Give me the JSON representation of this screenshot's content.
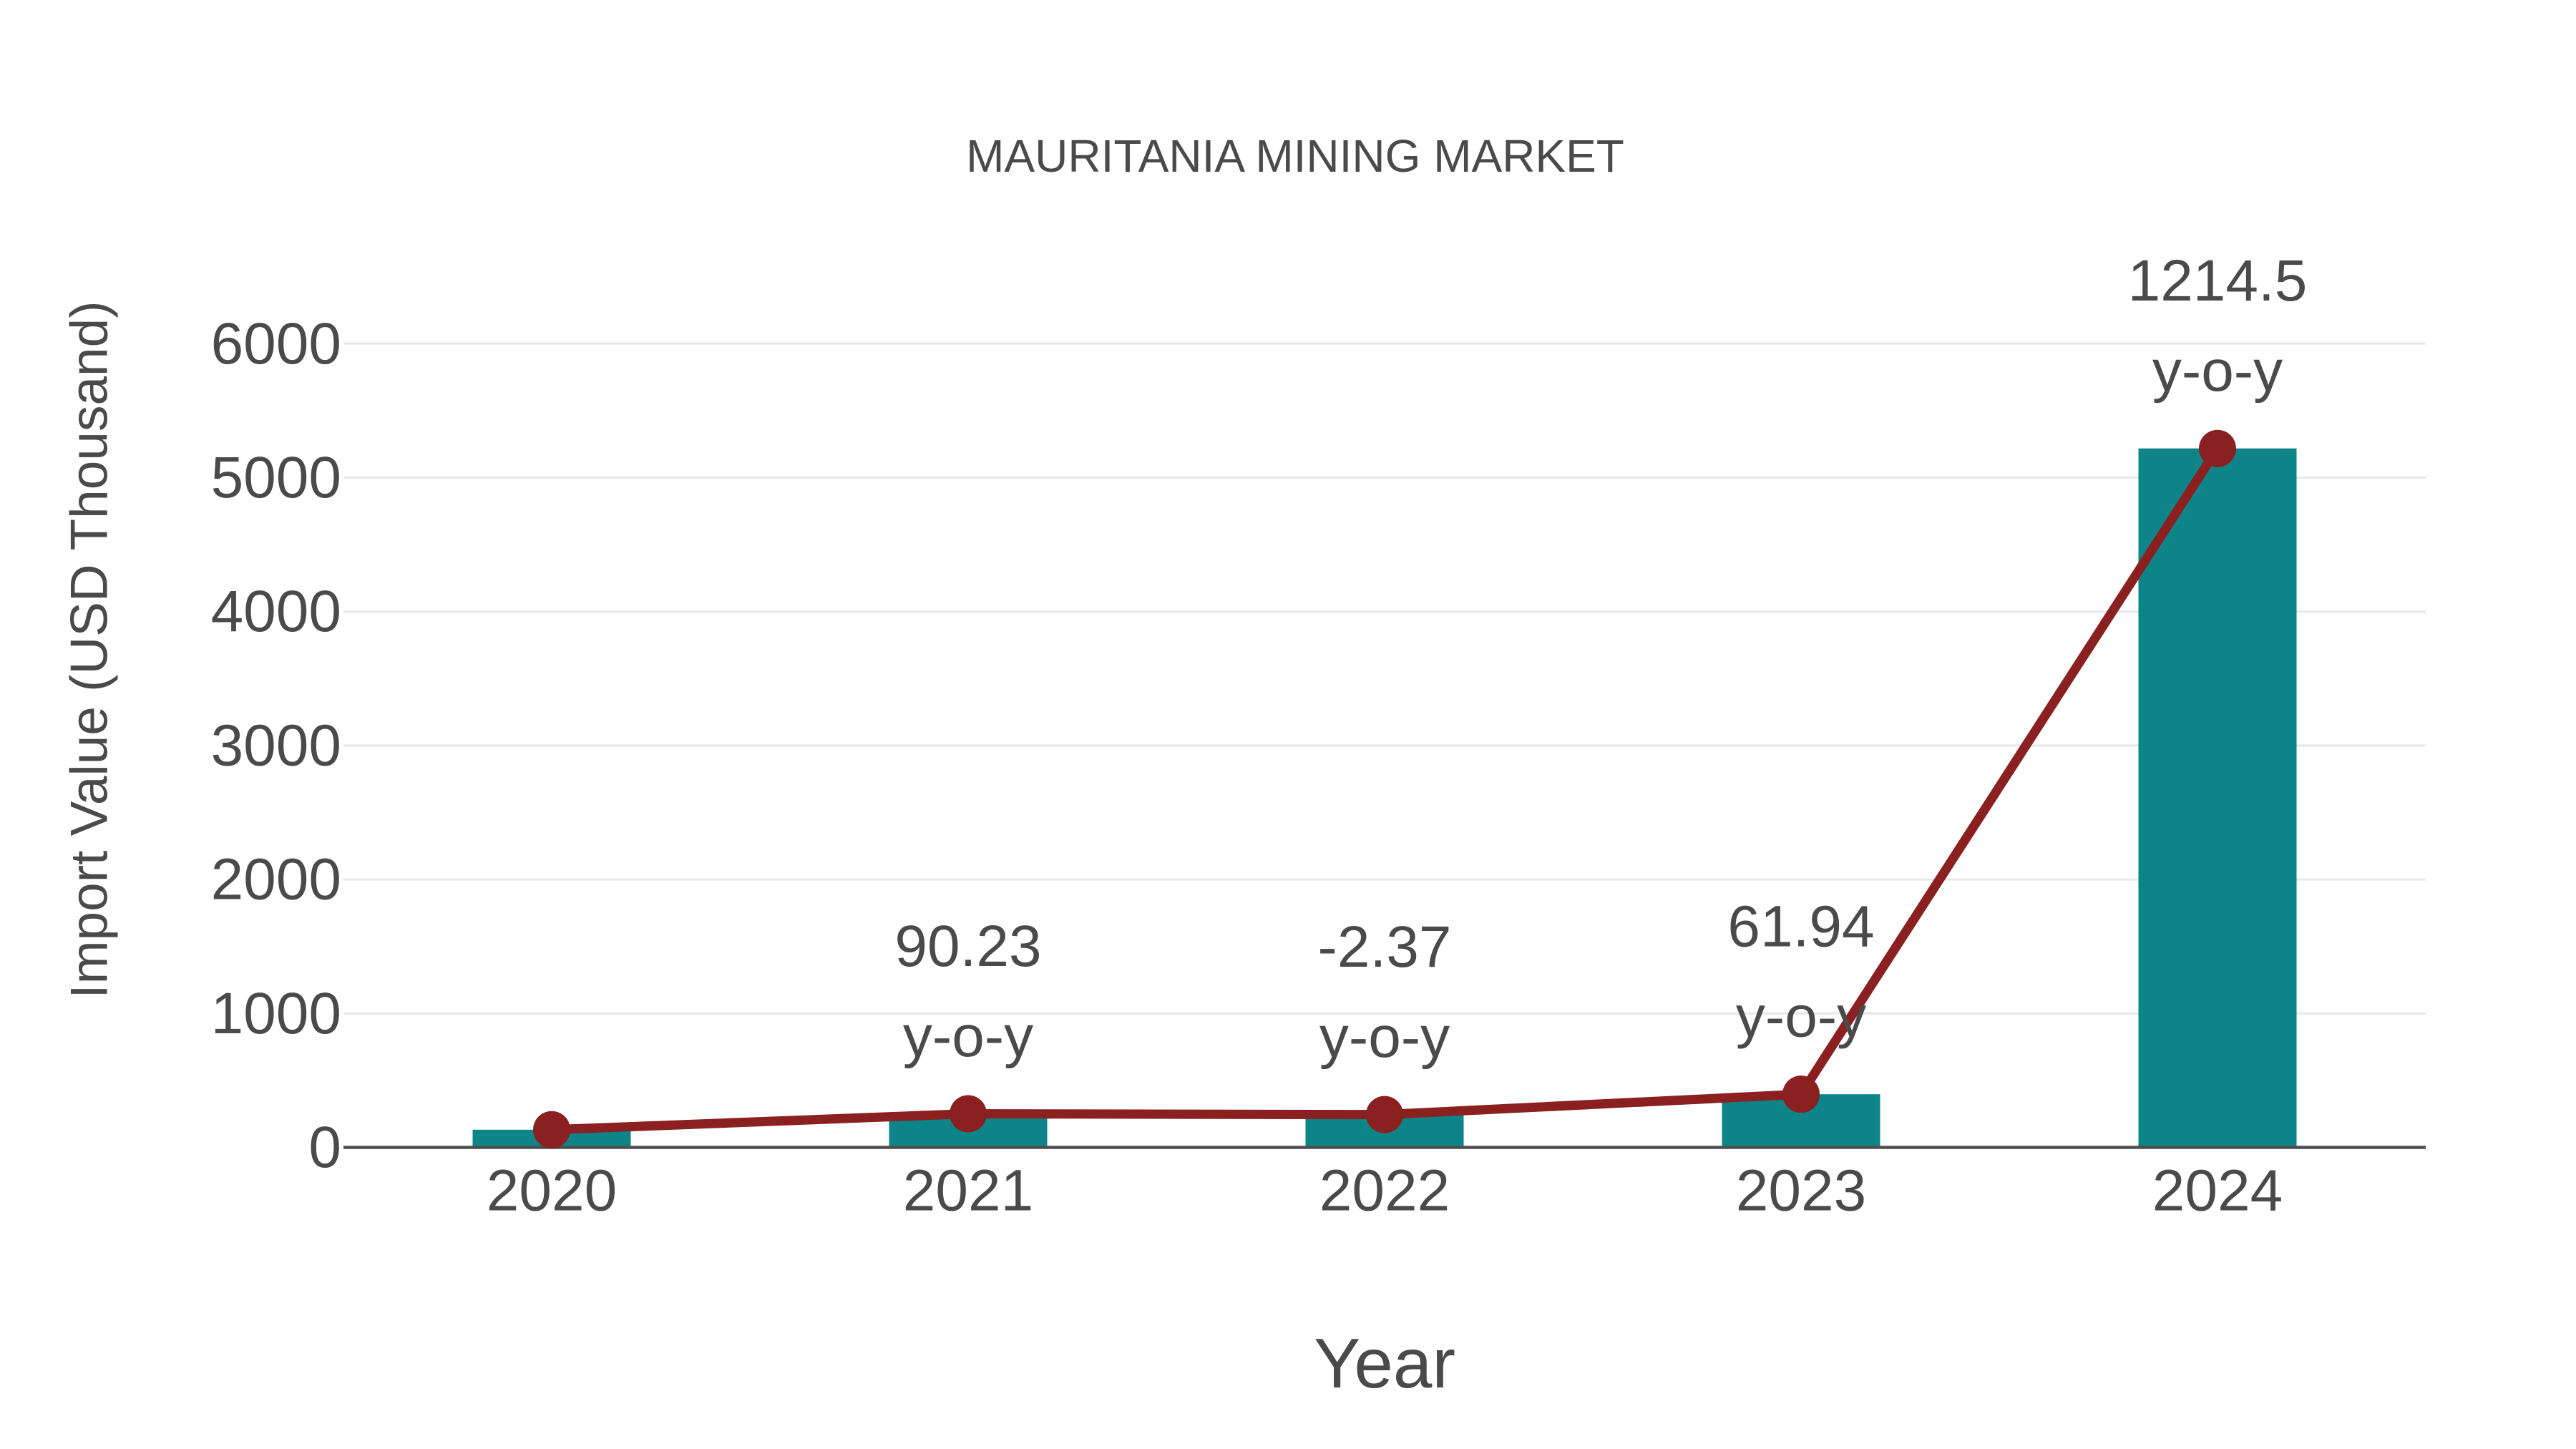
{
  "chart_data": {
    "type": "bar",
    "title": "MAURITANIA MINING MARKET",
    "xlabel": "Year",
    "ylabel": "Import Value (USD Thousand)",
    "categories": [
      "2020",
      "2021",
      "2022",
      "2023",
      "2024"
    ],
    "series": [
      {
        "name": "Import Value bars",
        "type": "bar",
        "values": [
          132,
          251,
          245,
          397,
          5218
        ]
      },
      {
        "name": "Import Value trend",
        "type": "line",
        "values": [
          132,
          251,
          245,
          397,
          5218
        ]
      }
    ],
    "annotations": [
      {
        "category": "2021",
        "value_label": "90.23",
        "unit_label": "y-o-y",
        "yoy_percent": 90.23
      },
      {
        "category": "2022",
        "value_label": "-2.37",
        "unit_label": "y-o-y",
        "yoy_percent": -2.37
      },
      {
        "category": "2023",
        "value_label": "61.94",
        "unit_label": "y-o-y",
        "yoy_percent": 61.94
      },
      {
        "category": "2024",
        "value_label": "1214.5",
        "unit_label": "y-o-y",
        "yoy_percent": 1214.5
      }
    ],
    "yticks": [
      0,
      1000,
      2000,
      3000,
      4000,
      5000,
      6000
    ],
    "ylim": [
      0,
      6000
    ],
    "grid": "horizontal-light",
    "legend": "none",
    "colors": {
      "background": "#ffffff",
      "bar": "#0d8487",
      "line": "#8a2020",
      "marker": "#8a2020",
      "text": "#4a4a4a",
      "grid": "#e7e7e7",
      "axis": "#4f4f4f"
    }
  }
}
